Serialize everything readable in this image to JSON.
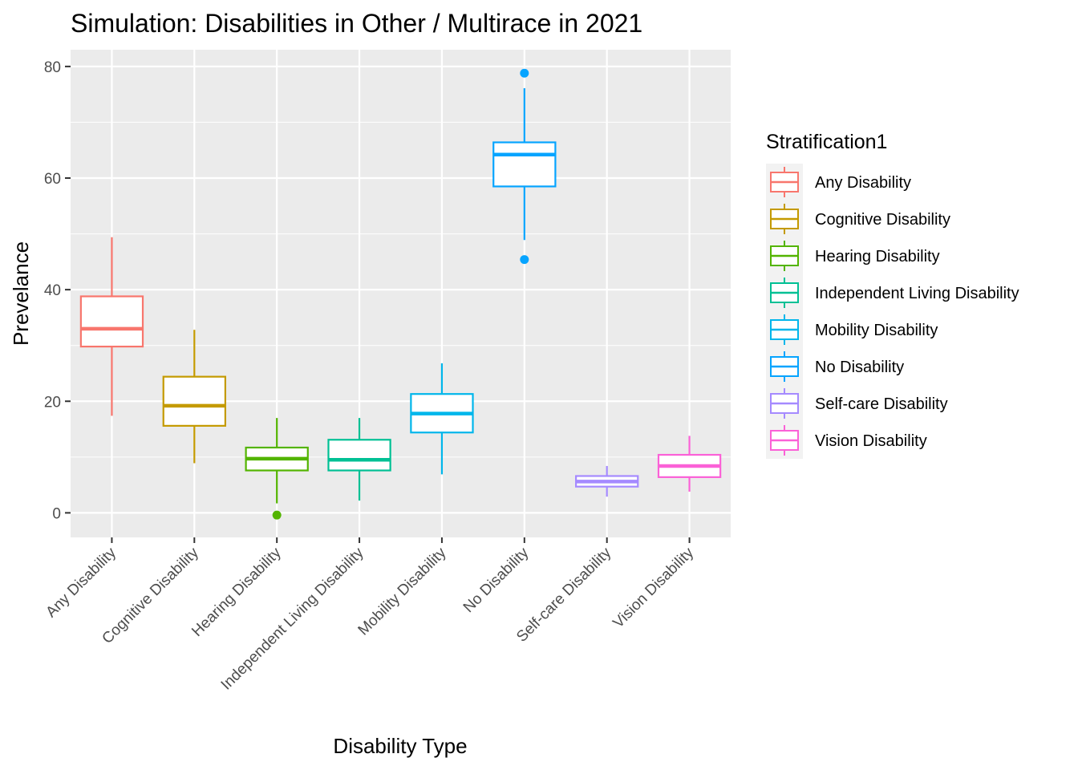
{
  "chart_data": {
    "type": "boxplot",
    "title": "Simulation: Disabilities in Other / Multirace in 2021",
    "xlabel": "Disability Type",
    "ylabel": "Prevelance",
    "ylim": [
      -4.4,
      83
    ],
    "yticks": [
      0,
      20,
      40,
      60,
      80
    ],
    "grid": true,
    "legend_position": "right",
    "legend_title": "Stratification1",
    "categories": [
      "Any Disability",
      "Cognitive Disability",
      "Hearing Disability",
      "Independent Living Disability",
      "Mobility Disability",
      "No Disability",
      "Self-care Disability",
      "Vision Disability"
    ],
    "colors": [
      "#F8766D",
      "#C49A00",
      "#53B400",
      "#00C094",
      "#00B6EB",
      "#06A4FF",
      "#A58AFF",
      "#FB61D7"
    ],
    "boxes": [
      {
        "category": "Any Disability",
        "whisker_low": 17.4,
        "q1": 29.8,
        "median": 33.0,
        "q3": 38.8,
        "whisker_high": 49.4,
        "outliers": []
      },
      {
        "category": "Cognitive Disability",
        "whisker_low": 8.9,
        "q1": 15.6,
        "median": 19.2,
        "q3": 24.4,
        "whisker_high": 32.8,
        "outliers": []
      },
      {
        "category": "Hearing Disability",
        "whisker_low": 1.7,
        "q1": 7.6,
        "median": 9.7,
        "q3": 11.7,
        "whisker_high": 17.0,
        "outliers": [
          -0.4
        ]
      },
      {
        "category": "Independent Living Disability",
        "whisker_low": 2.2,
        "q1": 7.6,
        "median": 9.5,
        "q3": 13.1,
        "whisker_high": 17.0,
        "outliers": []
      },
      {
        "category": "Mobility Disability",
        "whisker_low": 6.9,
        "q1": 14.4,
        "median": 17.8,
        "q3": 21.3,
        "whisker_high": 26.8,
        "outliers": []
      },
      {
        "category": "No Disability",
        "whisker_low": 48.9,
        "q1": 58.5,
        "median": 64.2,
        "q3": 66.4,
        "whisker_high": 76.1,
        "outliers": [
          45.4,
          78.8
        ]
      },
      {
        "category": "Self-care Disability",
        "whisker_low": 2.9,
        "q1": 4.7,
        "median": 5.6,
        "q3": 6.6,
        "whisker_high": 8.4,
        "outliers": []
      },
      {
        "category": "Vision Disability",
        "whisker_low": 3.8,
        "q1": 6.4,
        "median": 8.4,
        "q3": 10.4,
        "whisker_high": 13.8,
        "outliers": []
      }
    ]
  }
}
